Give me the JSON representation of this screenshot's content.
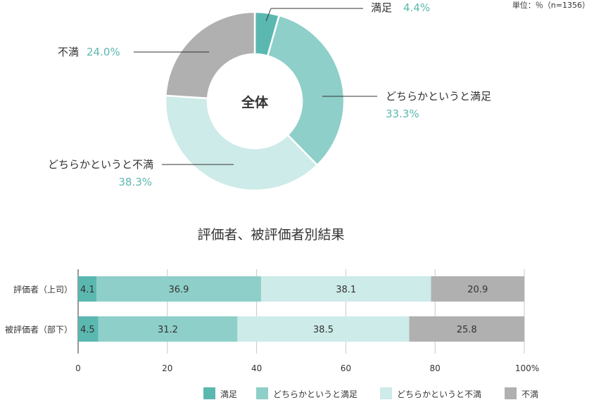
{
  "unit_note": "単位：％（n=1356）",
  "chart_data": [
    {
      "type": "pie",
      "center_label": "全体",
      "slices": [
        {
          "name": "満足",
          "value": 4.4,
          "value_label": "4.4%",
          "color": "#5bb8b0"
        },
        {
          "name": "どちらかというと満足",
          "value": 33.3,
          "value_label": "33.3%",
          "color": "#8ecfc9"
        },
        {
          "name": "どちらかというと不満",
          "value": 38.3,
          "value_label": "38.3%",
          "color": "#cdebe8"
        },
        {
          "name": "不満",
          "value": 24.0,
          "value_label": "24.0%",
          "color": "#b0b0b0"
        }
      ]
    },
    {
      "type": "bar",
      "orientation": "horizontal",
      "stacked": true,
      "title": "評価者、被評価者別結果",
      "categories": [
        "評価者（上司）",
        "被評価者（部下）"
      ],
      "series": [
        {
          "name": "満足",
          "values": [
            4.1,
            4.5
          ],
          "color": "#5bb8b0"
        },
        {
          "name": "どちらかというと満足",
          "values": [
            36.9,
            31.2
          ],
          "color": "#8ecfc9"
        },
        {
          "name": "どちらかというと不満",
          "values": [
            38.1,
            38.5
          ],
          "color": "#cdebe8"
        },
        {
          "name": "不満",
          "values": [
            20.9,
            25.8
          ],
          "color": "#b0b0b0"
        }
      ],
      "xlim": [
        0,
        100
      ],
      "x_ticks": [
        "0",
        "20",
        "40",
        "60",
        "80",
        "100%"
      ],
      "x_tick_values": [
        0,
        20,
        40,
        60,
        80,
        100
      ],
      "grid": true,
      "legend": "bottom"
    }
  ]
}
